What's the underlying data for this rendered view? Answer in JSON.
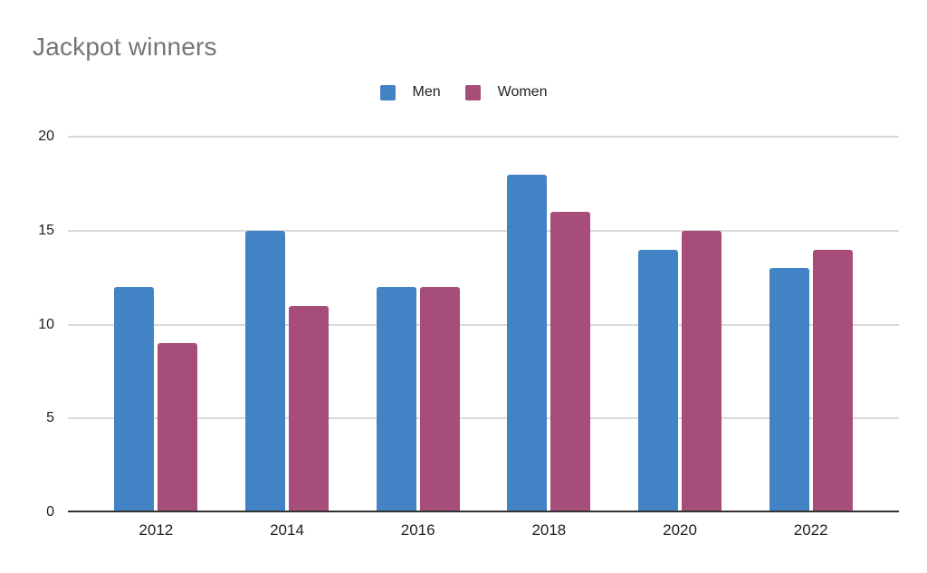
{
  "title": "Jackpot winners",
  "colors": {
    "men": "#4183c4",
    "women": "#a64d79",
    "title_text": "#757575",
    "axis_text": "#1f1f1f",
    "gridline": "#d9d9d9",
    "axis_line": "#333333",
    "background": "#ffffff"
  },
  "chart_data": {
    "type": "bar",
    "title": "Jackpot winners",
    "categories": [
      "2012",
      "2014",
      "2016",
      "2018",
      "2020",
      "2022"
    ],
    "series": [
      {
        "name": "Men",
        "color": "#4183c4",
        "values": [
          12,
          15,
          12,
          18,
          14,
          13
        ]
      },
      {
        "name": "Women",
        "color": "#a64d79",
        "values": [
          9,
          11,
          12,
          16,
          15,
          14
        ]
      }
    ],
    "xlabel": "",
    "ylabel": "",
    "ylim": [
      0,
      20
    ],
    "yticks": [
      0,
      5,
      10,
      15,
      20
    ],
    "grid": true,
    "legend_position": "top-center"
  }
}
